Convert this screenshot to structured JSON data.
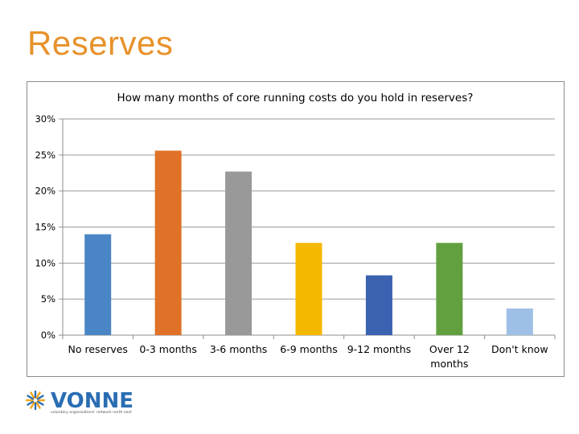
{
  "slide": {
    "title": "Reserves"
  },
  "chart_data": {
    "type": "bar",
    "title": "How many months of core running costs do you hold in reserves?",
    "xlabel": "",
    "ylabel": "",
    "ylim": [
      0,
      30
    ],
    "yticks": [
      "0%",
      "5%",
      "10%",
      "15%",
      "20%",
      "25%",
      "30%"
    ],
    "ytick_values": [
      0,
      5,
      10,
      15,
      20,
      25,
      30
    ],
    "grid": true,
    "legend": "none",
    "categories": [
      [
        "No reserves"
      ],
      [
        "0-3 months"
      ],
      [
        "3-6 months"
      ],
      [
        "6-9 months"
      ],
      [
        "9-12 months"
      ],
      [
        "Over 12",
        "months"
      ],
      [
        "Don't know"
      ]
    ],
    "values": [
      14.0,
      25.6,
      22.7,
      12.8,
      8.3,
      12.8,
      3.7
    ],
    "colors": [
      "#4a86c5",
      "#e07128",
      "#999999",
      "#f5b800",
      "#3a62b0",
      "#62a03f",
      "#9ebfe6"
    ]
  },
  "logo": {
    "name": "VONNE",
    "tagline": "voluntary organisations' network north east",
    "colors": {
      "brand": "#2a6db3",
      "accent": "#f2a51d"
    }
  }
}
